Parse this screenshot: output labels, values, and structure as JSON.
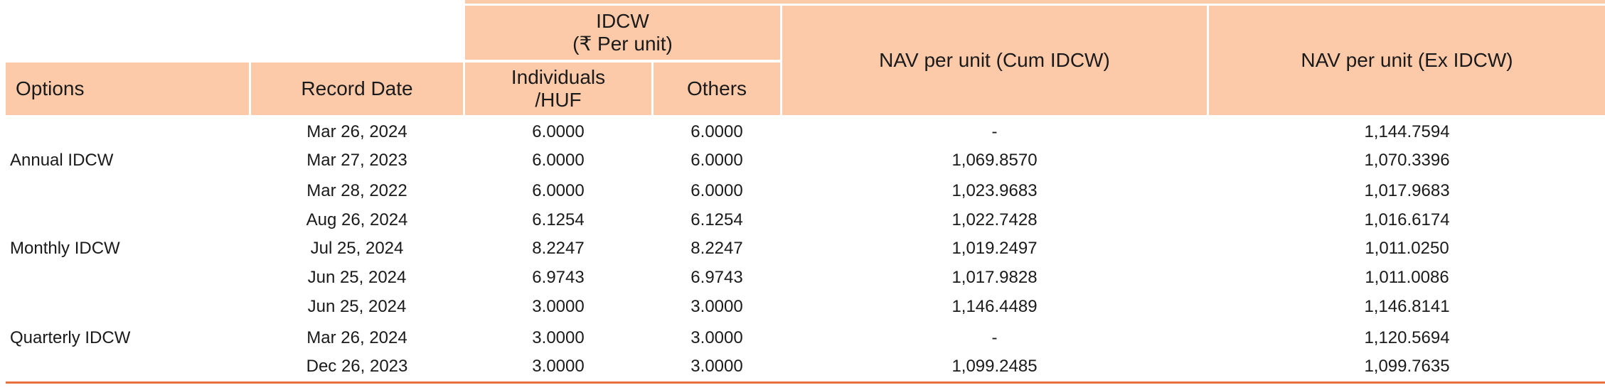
{
  "header": {
    "idcw_group": "IDCW",
    "idcw_group_sub": "(₹ Per unit)",
    "options": "Options",
    "record_date": "Record Date",
    "individuals": "Individuals",
    "individuals_sub": "/HUF",
    "others": "Others",
    "nav_cum": "NAV per unit (Cum IDCW)",
    "nav_ex": "NAV per unit (Ex IDCW)"
  },
  "groups": [
    {
      "label": "Annual IDCW"
    },
    {
      "label": "Monthly IDCW"
    },
    {
      "label": "Quarterly IDCW"
    }
  ],
  "rows": [
    {
      "date": "Mar 26, 2024",
      "individuals": "6.0000",
      "others": "6.0000",
      "nav_cum": "-",
      "nav_ex": "1,144.7594"
    },
    {
      "date": "Mar 27, 2023",
      "individuals": "6.0000",
      "others": "6.0000",
      "nav_cum": "1,069.8570",
      "nav_ex": "1,070.3396"
    },
    {
      "date": "Mar 28, 2022",
      "individuals": "6.0000",
      "others": "6.0000",
      "nav_cum": "1,023.9683",
      "nav_ex": "1,017.9683"
    },
    {
      "date": "Aug 26, 2024",
      "individuals": "6.1254",
      "others": "6.1254",
      "nav_cum": "1,022.7428",
      "nav_ex": "1,016.6174"
    },
    {
      "date": "Jul 25, 2024",
      "individuals": "8.2247",
      "others": "8.2247",
      "nav_cum": "1,019.2497",
      "nav_ex": "1,011.0250"
    },
    {
      "date": "Jun 25, 2024",
      "individuals": "6.9743",
      "others": "6.9743",
      "nav_cum": "1,017.9828",
      "nav_ex": "1,011.0086"
    },
    {
      "date": "Jun 25, 2024",
      "individuals": "3.0000",
      "others": "3.0000",
      "nav_cum": "1,146.4489",
      "nav_ex": "1,146.8141"
    },
    {
      "date": "Mar 26, 2024",
      "individuals": "3.0000",
      "others": "3.0000",
      "nav_cum": "-",
      "nav_ex": "1,120.5694"
    },
    {
      "date": "Dec 26, 2023",
      "individuals": "3.0000",
      "others": "3.0000",
      "nav_cum": "1,099.2485",
      "nav_ex": "1,099.7635"
    }
  ],
  "colors": {
    "header_bg": "#fdcaa9",
    "bottom_rule": "#e8703f"
  }
}
